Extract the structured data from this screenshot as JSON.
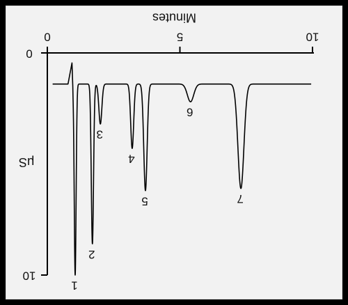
{
  "chart_data": {
    "type": "line",
    "title": "",
    "xlabel": "Minutes",
    "ylabel": "μS",
    "x_ticks": [
      "0",
      "5",
      "10"
    ],
    "y_ticks": [
      "0",
      "10"
    ],
    "xlim": [
      0,
      10
    ],
    "ylim": [
      0,
      10
    ],
    "baseline": 1.4,
    "grid": false,
    "legend": "none",
    "render_orientation": "rotated-180",
    "line_color": "#000000",
    "peaks": [
      {
        "label": "1",
        "time": 1.05,
        "depth": 10.0,
        "width": 0.05
      },
      {
        "label": "2",
        "time": 1.7,
        "depth": 8.6,
        "width": 0.06
      },
      {
        "label": "3",
        "time": 2.0,
        "depth": 3.2,
        "width": 0.08
      },
      {
        "label": "4",
        "time": 3.2,
        "depth": 4.3,
        "width": 0.08
      },
      {
        "label": "5",
        "time": 3.7,
        "depth": 6.2,
        "width": 0.09
      },
      {
        "label": "6",
        "time": 5.4,
        "depth": 2.2,
        "width": 0.17
      },
      {
        "label": "7",
        "time": 7.3,
        "depth": 6.1,
        "width": 0.16
      }
    ]
  }
}
